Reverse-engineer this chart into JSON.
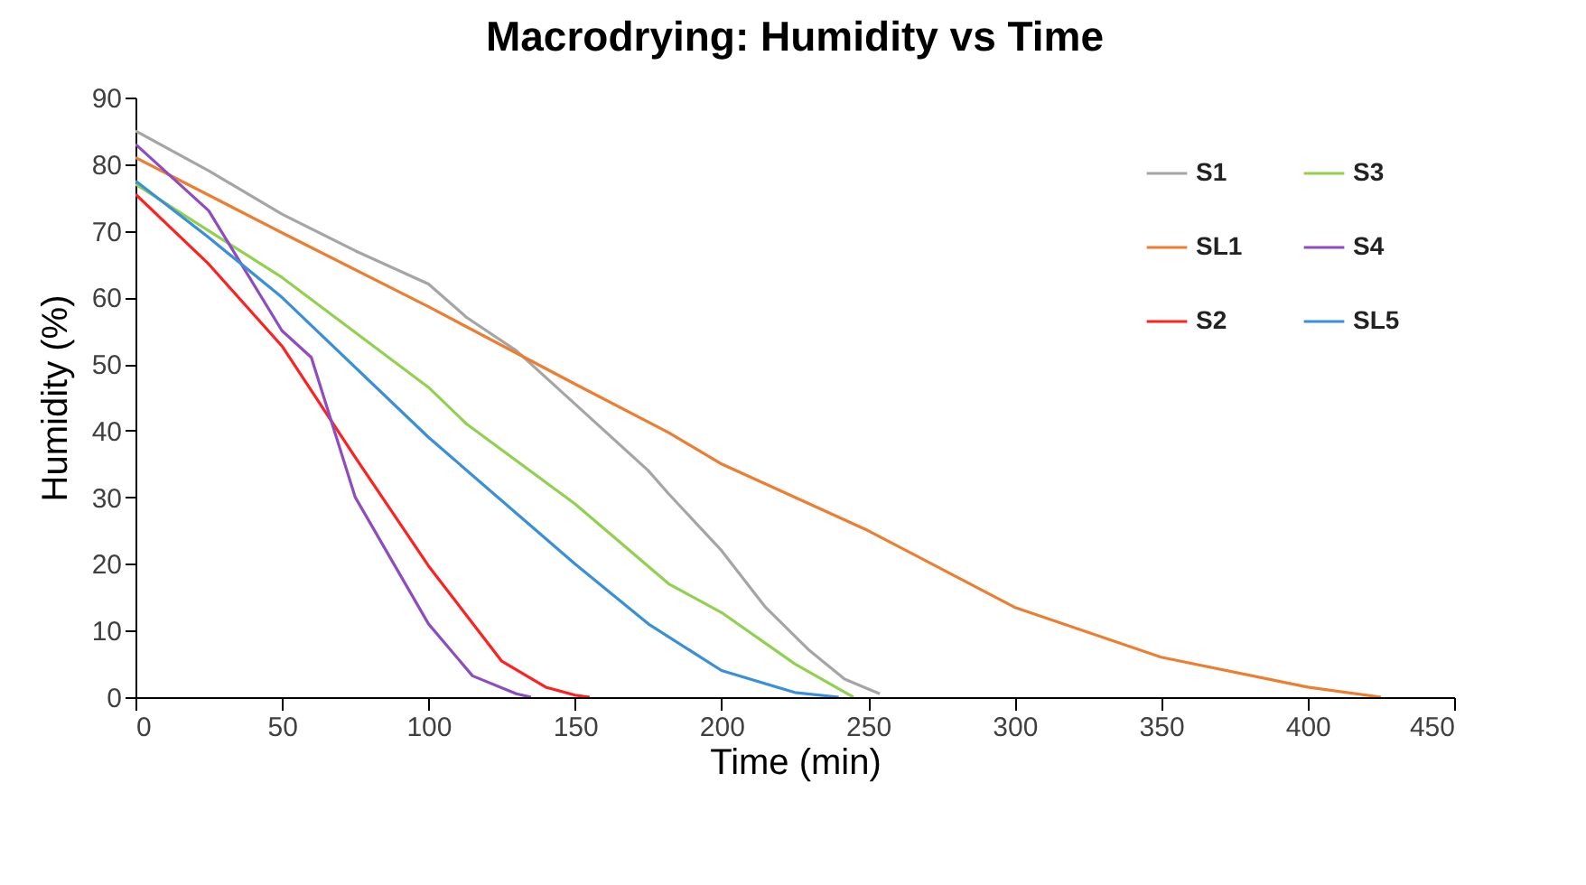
{
  "chart_data": {
    "type": "line",
    "title": "Macrodrying:  Humidity vs Time",
    "xlabel": "Time (min)",
    "ylabel": "Humidity (%)",
    "xlim": [
      0,
      450
    ],
    "xticks": [
      0,
      50,
      100,
      150,
      200,
      250,
      300,
      350,
      400,
      450
    ],
    "ylim": [
      0,
      90
    ],
    "yticks": [
      0,
      10,
      20,
      30,
      40,
      50,
      60,
      70,
      80,
      90
    ],
    "grid": false,
    "legend": "top right",
    "marker": "none",
    "line_style": "solid",
    "series": [
      {
        "name": "S1",
        "color": "#a5a5a5",
        "x": [
          0,
          25,
          50,
          75,
          100,
          113,
          130,
          150,
          175,
          182,
          200,
          215,
          230,
          242,
          254
        ],
        "values": [
          85,
          79,
          72.5,
          67,
          62,
          57,
          52,
          44,
          34,
          30.5,
          22,
          13.5,
          7,
          2.7,
          0.5
        ]
      },
      {
        "name": "SL1",
        "color": "#ed7d31",
        "x": [
          0,
          50,
          100,
          150,
          182,
          200,
          250,
          300,
          350,
          400,
          425
        ],
        "values": [
          81,
          69.7,
          58.6,
          47,
          39.7,
          35,
          25,
          13.5,
          6,
          1.5,
          0
        ]
      },
      {
        "name": "S2",
        "color": "#ff2020",
        "x": [
          0,
          25,
          50,
          75,
          100,
          125,
          140,
          150,
          155
        ],
        "values": [
          75.5,
          65,
          52.7,
          36,
          19.7,
          5.4,
          1.5,
          0.3,
          0
        ]
      },
      {
        "name": "S3",
        "color": "#92d050",
        "x": [
          0,
          25,
          50,
          100,
          113,
          150,
          182,
          200,
          225,
          245
        ],
        "values": [
          77,
          70,
          63,
          46.5,
          41,
          29,
          17,
          12.7,
          5,
          0
        ]
      },
      {
        "name": "S4",
        "color": "#8e4cc0",
        "x": [
          0,
          25,
          50,
          60,
          75,
          100,
          115,
          130,
          135
        ],
        "values": [
          83,
          73,
          55,
          51,
          30,
          11,
          3.2,
          0.5,
          0
        ]
      },
      {
        "name": "SL5",
        "color": "#3a8fd9",
        "x": [
          0,
          25,
          50,
          100,
          150,
          175,
          200,
          225,
          240
        ],
        "values": [
          77.5,
          69,
          60,
          39,
          20,
          11,
          4,
          0.7,
          0
        ]
      }
    ]
  }
}
